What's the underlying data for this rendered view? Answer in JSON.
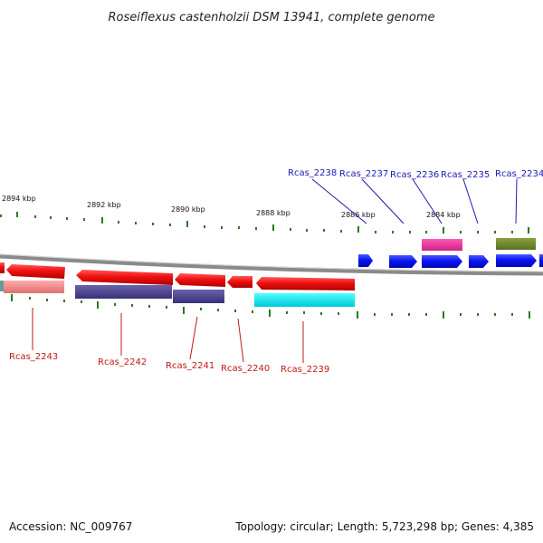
{
  "title": "Roseiflexus castenholzii DSM 13941, complete genome",
  "footer": {
    "accession": "Accession: NC_009767",
    "summary": "Topology: circular; Length: 5,723,298 bp; Genes: 4,385"
  },
  "scale_labels": [
    "2894 kbp",
    "2892 kbp",
    "2890 kbp",
    "2888 kbp",
    "2886 kbp",
    "2884 kbp"
  ],
  "gene_labels_top": [
    "Rcas_2238",
    "Rcas_2237",
    "Rcas_2236",
    "Rcas_2235",
    "Rcas_2234"
  ],
  "gene_labels_bottom": [
    "Rcas_2243",
    "Rcas_2242",
    "Rcas_2241",
    "Rcas_2240",
    "Rcas_2239"
  ],
  "colors": {
    "forward_gene": "#0a14f0",
    "reverse_gene": "#f0141e",
    "tick": "#2a7a1e",
    "label_top": "#1a1ab4",
    "label_bottom": "#c01818",
    "backbone": "#8a8a8a"
  }
}
